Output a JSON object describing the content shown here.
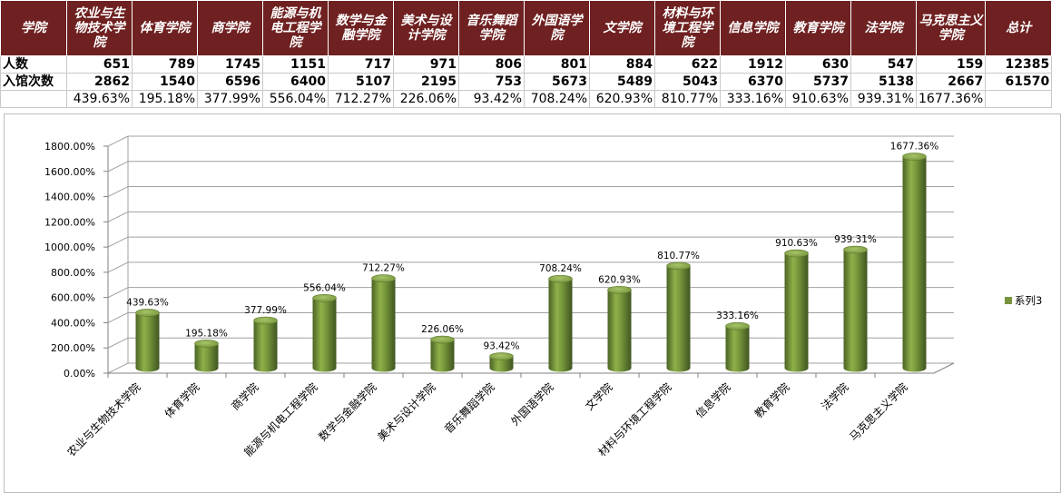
{
  "table": {
    "headers": [
      "学院",
      "农业与生物技术学院",
      "体育学院",
      "商学院",
      "能源与机电工程学院",
      "数学与金融学院",
      "美术与设计学院",
      "音乐舞蹈学院",
      "外国语学院",
      "文学院",
      "材料与环境工程学院",
      "信息学院",
      "教育学院",
      "法学院",
      "马克思主义学院",
      "总计"
    ],
    "rows": [
      {
        "label": "人数",
        "values": [
          "651",
          "789",
          "1745",
          "1151",
          "717",
          "971",
          "806",
          "801",
          "884",
          "622",
          "1912",
          "630",
          "547",
          "159",
          "12385"
        ]
      },
      {
        "label": "入馆次数",
        "values": [
          "2862",
          "1540",
          "6596",
          "6400",
          "5107",
          "2195",
          "753",
          "5673",
          "5489",
          "5043",
          "6370",
          "5737",
          "5138",
          "2667",
          "61570"
        ]
      },
      {
        "label": "",
        "values": [
          "439.63%",
          "195.18%",
          "377.99%",
          "556.04%",
          "712.27%",
          "226.06%",
          "93.42%",
          "708.24%",
          "620.93%",
          "810.77%",
          "333.16%",
          "910.63%",
          "939.31%",
          "1677.36%",
          ""
        ]
      }
    ]
  },
  "chart_data": {
    "type": "bar",
    "style": "3d-cylinder",
    "categories": [
      "农业与生物技术学院",
      "体育学院",
      "商学院",
      "能源与机电工程学院",
      "数学与金融学院",
      "美术与设计学院",
      "音乐舞蹈学院",
      "外国语学院",
      "文学院",
      "材料与环境工程学院",
      "信息学院",
      "教育学院",
      "法学院",
      "马克思主义学院"
    ],
    "series": [
      {
        "name": "系列3",
        "values": [
          439.63,
          195.18,
          377.99,
          556.04,
          712.27,
          226.06,
          93.42,
          708.24,
          620.93,
          810.77,
          333.16,
          910.63,
          939.31,
          1677.36
        ],
        "color": "#77933c"
      }
    ],
    "data_labels": [
      "439.63%",
      "195.18%",
      "377.99%",
      "556.04%",
      "712.27%",
      "226.06%",
      "93.42%",
      "708.24%",
      "620.93%",
      "810.77%",
      "333.16%",
      "910.63%",
      "939.31%",
      "1677.36%"
    ],
    "y_ticks": [
      "0.00%",
      "200.00%",
      "400.00%",
      "600.00%",
      "800.00%",
      "1000.00%",
      "1200.00%",
      "1400.00%",
      "1600.00%",
      "1800.00%"
    ],
    "ylim": [
      0,
      1800
    ],
    "grid": true,
    "legend": "right",
    "title": "",
    "xlabel": "",
    "ylabel": ""
  },
  "colors": {
    "header_bg": "#6f2020",
    "bar": "#77933c",
    "grid": "#a0a0a0"
  }
}
